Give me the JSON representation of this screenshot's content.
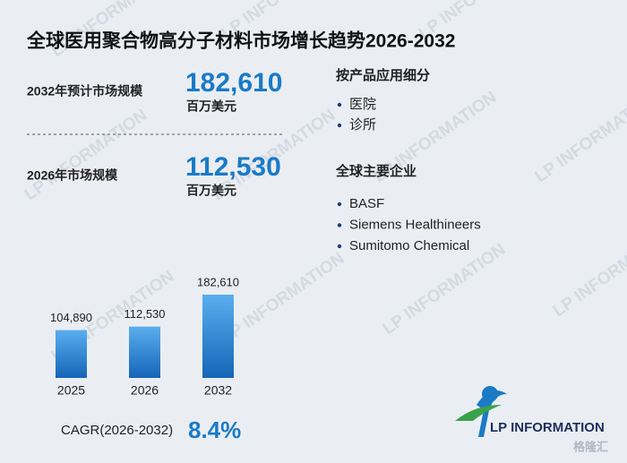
{
  "title": "全球医用聚合物高分子材料市场增长趋势2026-2032",
  "stats": [
    {
      "label": "2032年预计市场规模",
      "value": "182,610",
      "unit": "百万美元"
    },
    {
      "label": "2026年市场规模",
      "value": "112,530",
      "unit": "百万美元"
    }
  ],
  "segments": {
    "heading": "按产品应用细分",
    "items": [
      "医院",
      "诊所"
    ]
  },
  "companies": {
    "heading": "全球主要企业",
    "items": [
      "BASF",
      "Siemens Healthineers",
      "Sumitomo Chemical"
    ]
  },
  "chart_data": {
    "type": "bar",
    "categories": [
      "2025",
      "2026",
      "2032"
    ],
    "values": [
      104890,
      112530,
      182610
    ],
    "value_labels": [
      "104,890",
      "112,530",
      "182,610"
    ],
    "color": "#2b86d6"
  },
  "cagr": {
    "label": "CAGR(2026-2032)",
    "value": "8.4%"
  },
  "logo": "LP INFORMATION",
  "watermark": "LP INFORMATION",
  "source_badge": "格隆汇"
}
